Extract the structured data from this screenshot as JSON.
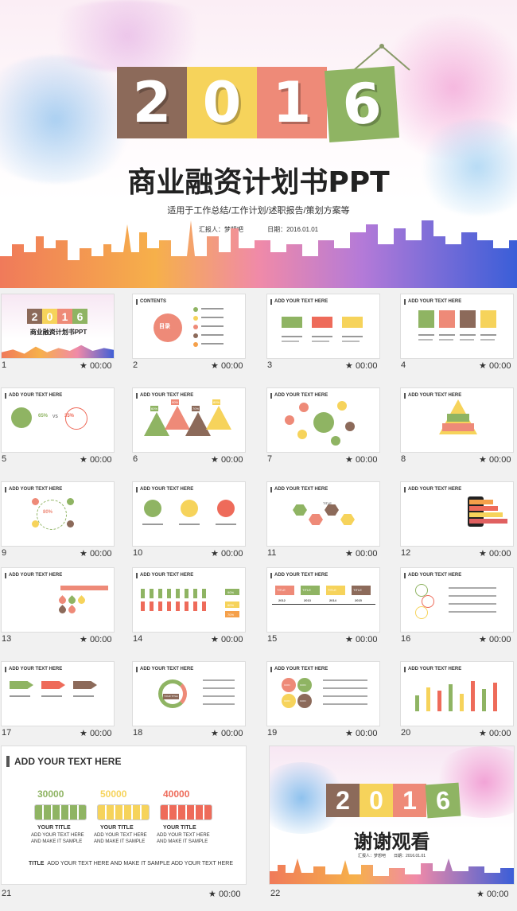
{
  "hero": {
    "digits": [
      "2",
      "0",
      "1",
      "6"
    ],
    "digit_colors": [
      "#8c6a5a",
      "#f6d35b",
      "#ee8a78",
      "#8fb463"
    ],
    "title": "商业融资计划书PPT",
    "subtitle": "适用于工作总结/工作计划/述职报告/策划方案等",
    "reporter": "汇报人：梦想吧",
    "date": "日期：2016.01.01"
  },
  "slides": [
    {
      "num": "1",
      "time": "00:00",
      "header": ""
    },
    {
      "num": "2",
      "time": "00:00",
      "header": "CONTENTS"
    },
    {
      "num": "3",
      "time": "00:00",
      "header": "ADD YOUR TEXT HERE"
    },
    {
      "num": "4",
      "time": "00:00",
      "header": "ADD YOUR TEXT HERE"
    },
    {
      "num": "5",
      "time": "00:00",
      "header": "ADD YOUR TEXT HERE"
    },
    {
      "num": "6",
      "time": "00:00",
      "header": "ADD YOUR TEXT HERE"
    },
    {
      "num": "7",
      "time": "00:00",
      "header": "ADD YOUR TEXT HERE"
    },
    {
      "num": "8",
      "time": "00:00",
      "header": "ADD YOUR TEXT HERE"
    },
    {
      "num": "9",
      "time": "00:00",
      "header": "ADD YOUR TEXT HERE"
    },
    {
      "num": "10",
      "time": "00:00",
      "header": "ADD YOUR TEXT HERE"
    },
    {
      "num": "11",
      "time": "00:00",
      "header": "ADD YOUR TEXT HERE"
    },
    {
      "num": "12",
      "time": "00:00",
      "header": "ADD YOUR TEXT HERE"
    },
    {
      "num": "13",
      "time": "00:00",
      "header": "ADD YOUR TEXT HERE"
    },
    {
      "num": "14",
      "time": "00:00",
      "header": "ADD YOUR TEXT HERE"
    },
    {
      "num": "15",
      "time": "00:00",
      "header": "ADD YOUR TEXT HERE"
    },
    {
      "num": "16",
      "time": "00:00",
      "header": "ADD YOUR TEXT HERE"
    },
    {
      "num": "17",
      "time": "00:00",
      "header": "ADD YOUR TEXT HERE"
    },
    {
      "num": "18",
      "time": "00:00",
      "header": "ADD YOUR TEXT HERE"
    },
    {
      "num": "19",
      "time": "00:00",
      "header": "ADD YOUR TEXT HERE"
    },
    {
      "num": "20",
      "time": "00:00",
      "header": "ADD YOUR TEXT HERE"
    }
  ],
  "slide1_title": "商业融资计划书PPT",
  "slide2_center": "目录",
  "slide5_pct1": "65%",
  "slide5_vs": "VS",
  "slide5_pct2": "35%",
  "slide6_pcts": [
    "60%",
    "90%",
    "70%",
    "80%"
  ],
  "slide9_pct": "80%",
  "slide11_label": "TITLE",
  "slide14_pcts": [
    "90%",
    "60%",
    "70%"
  ],
  "slide15_years": [
    "2012",
    "2013",
    "2014",
    "2015"
  ],
  "slide15_label": "TITLE",
  "slide18_label": "YOUR TITLE",
  "slide19_label": "ICON",
  "big21": {
    "num": "21",
    "time": "00:00",
    "header": "ADD YOUR TEXT HERE",
    "values": [
      "30000",
      "50000",
      "40000"
    ],
    "value_colors": [
      "#8fb463",
      "#f6d35b",
      "#ee6b5a"
    ],
    "item_title": "YOUR TITLE",
    "item_text_1": "ADD YOUR TEXT HERE",
    "item_text_2": "AND MAKE IT SAMPLE",
    "footer_title": "TITLE",
    "footer_text": "ADD YOUR TEXT HERE AND MAKE IT SAMPLE ADD YOUR TEXT HERE"
  },
  "big22": {
    "num": "22",
    "time": "00:00",
    "thanks": "谢谢观看",
    "meta": "汇报人：梦想吧　　日期：2016.01.01"
  },
  "star_glyph": "★"
}
